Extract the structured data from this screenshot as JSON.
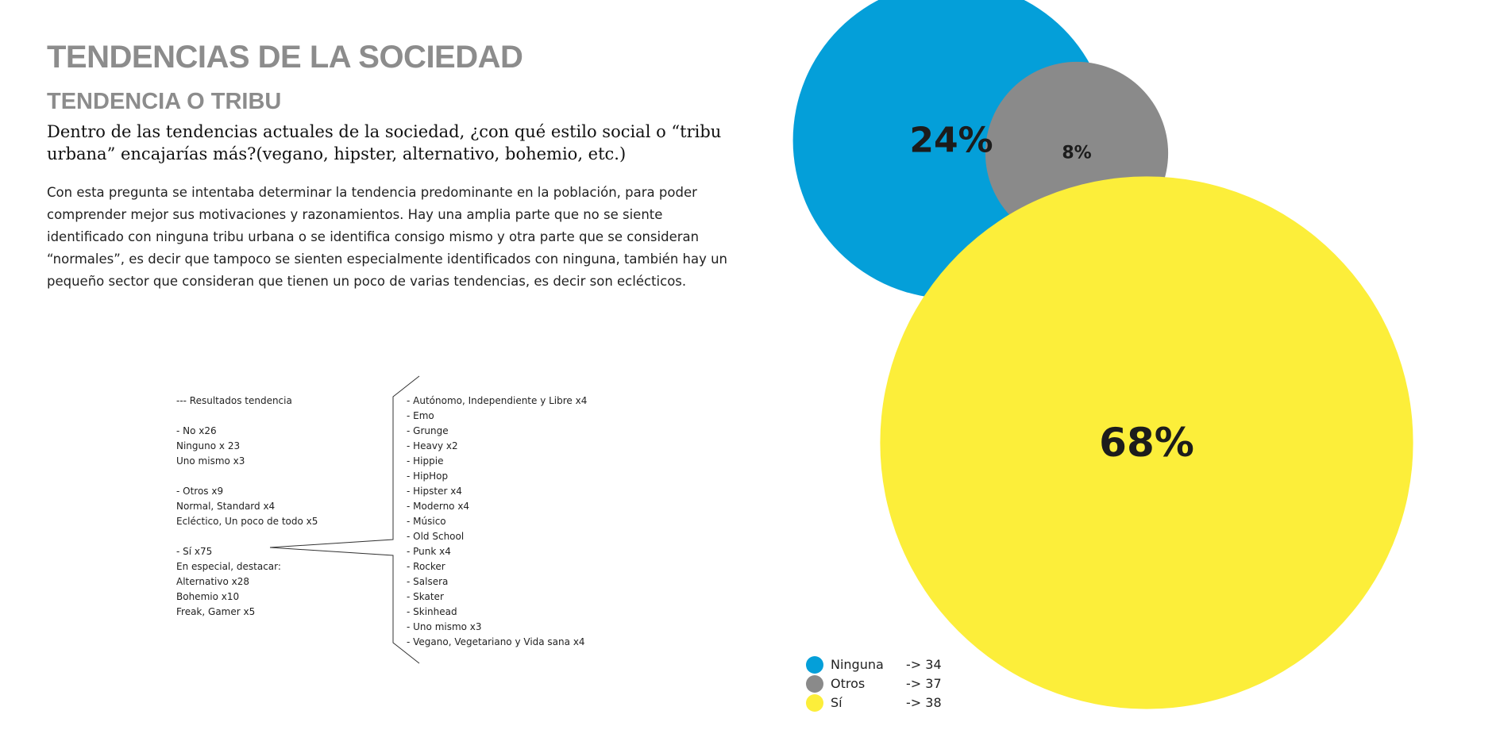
{
  "page": {
    "title": "TENDENCIAS DE LA SOCIEDAD",
    "subtitle": "TENDENCIA O TRIBU",
    "question_lines": [
      "Dentro de las tendencias actuales de la sociedad, ¿con qué estilo social o “tribu",
      "urbana” encajarías más?(vegano, hipster, alternativo, bohemio, etc.)"
    ],
    "body_lines": [
      "Con esta pregunta se intentaba determinar la tendencia predominante en la población, para poder",
      "comprender mejor sus motivaciones y razonamientos. Hay una amplia parte que no se siente",
      "identificado con ninguna tribu urbana o se identifica consigo mismo y otra parte que se consideran",
      "“normales”, es decir que tampoco se sienten especialmente identificados con ninguna, también hay un",
      "pequeño sector que consideran que tienen un poco de varias tendencias, es decir son eclécticos."
    ]
  },
  "results": {
    "lines": [
      "--- Resultados tendencia",
      "",
      "- No x26",
      "Ninguno x 23",
      "Uno mismo x3",
      "",
      "- Otros x9",
      "Normal, Standard x4",
      "Ecléctico, Un poco de todo x5",
      "",
      "- Sí x75",
      "En especial, destacar:",
      "Alternativo x28",
      "Bohemio x10",
      "Freak, Gamer x5"
    ],
    "tribes": [
      "- Autónomo, Independiente y Libre x4",
      "- Emo",
      "- Grunge",
      "- Heavy x2",
      "- Hippie",
      "- HipHop",
      "- Hipster x4",
      "- Moderno x4",
      "- Músico",
      "- Old School",
      "- Punk x4",
      "- Rocker",
      "- Salsera",
      "- Skater",
      "- Skinhead",
      "- Uno mismo x3",
      "- Vegano, Vegetariano y Vida sana x4"
    ]
  },
  "chart_data": {
    "type": "bubble",
    "title": "",
    "values": [
      {
        "name": "Ninguna",
        "value": 24,
        "label": "24%",
        "color": "#049fd9"
      },
      {
        "name": "Otros",
        "value": 8,
        "label": "8%",
        "color": "#8a8a8a"
      },
      {
        "name": "Sí",
        "value": 68,
        "label": "68%",
        "color": "#fcee3a"
      }
    ],
    "legend": {
      "placement": "bottom-left",
      "items": [
        {
          "label": "Ninguna",
          "value": "-> 34",
          "color": "#049fd9"
        },
        {
          "label": "Otros",
          "value": "-> 37",
          "color": "#8a8a8a"
        },
        {
          "label": "Sí",
          "value": "-> 38",
          "color": "#fcee3a"
        }
      ]
    }
  }
}
